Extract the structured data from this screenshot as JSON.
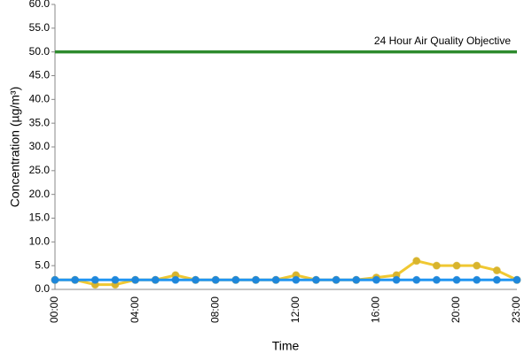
{
  "chart_data": {
    "type": "line",
    "y_label": "Concentration (µg/m³)",
    "x_label": "Time",
    "annotation": "24 Hour Air Quality Objective",
    "categories": [
      "00:00",
      null,
      null,
      null,
      "04:00",
      null,
      null,
      null,
      "08:00",
      null,
      null,
      null,
      "12:00",
      null,
      null,
      null,
      "16:00",
      null,
      null,
      null,
      "20:00",
      null,
      null,
      "23:00"
    ],
    "series": [
      {
        "color": "#2e8b2e",
        "markers": false,
        "values": [
          50,
          50,
          50,
          50,
          50,
          50,
          50,
          50,
          50,
          50,
          50,
          50,
          50,
          50,
          50,
          50,
          50,
          50,
          50,
          50,
          50,
          50,
          50,
          50
        ]
      },
      {
        "color": "#f0c832",
        "markers": true,
        "values": [
          2,
          2,
          1,
          1,
          2,
          2,
          3,
          2,
          2,
          2,
          2,
          2,
          3,
          2,
          2,
          2,
          2.5,
          3,
          6,
          5,
          5,
          5,
          4,
          2
        ]
      },
      {
        "color": "#2196f3",
        "markers": true,
        "values": [
          2,
          2,
          2,
          2,
          2,
          2,
          2,
          2,
          2,
          2,
          2,
          2,
          2,
          2,
          2,
          2,
          2,
          2,
          2,
          2,
          2,
          2,
          2,
          2
        ]
      }
    ],
    "ylim": [
      0,
      60
    ],
    "yticks": [
      {
        "value": 0,
        "label": "0.0"
      },
      {
        "value": 5,
        "label": "5.0"
      },
      {
        "value": 10,
        "label": "10.0"
      },
      {
        "value": 15,
        "label": "15.0"
      },
      {
        "value": 20,
        "label": "20.0"
      },
      {
        "value": 25,
        "label": "25.0"
      },
      {
        "value": 30,
        "label": "30.0"
      },
      {
        "value": 35,
        "label": "35.0"
      },
      {
        "value": 40,
        "label": "40.0"
      },
      {
        "value": 45,
        "label": "45.0"
      },
      {
        "value": 50,
        "label": "50.0"
      },
      {
        "value": 55,
        "label": "55.0"
      },
      {
        "value": 60,
        "label": "60.0"
      }
    ],
    "grid": false
  }
}
